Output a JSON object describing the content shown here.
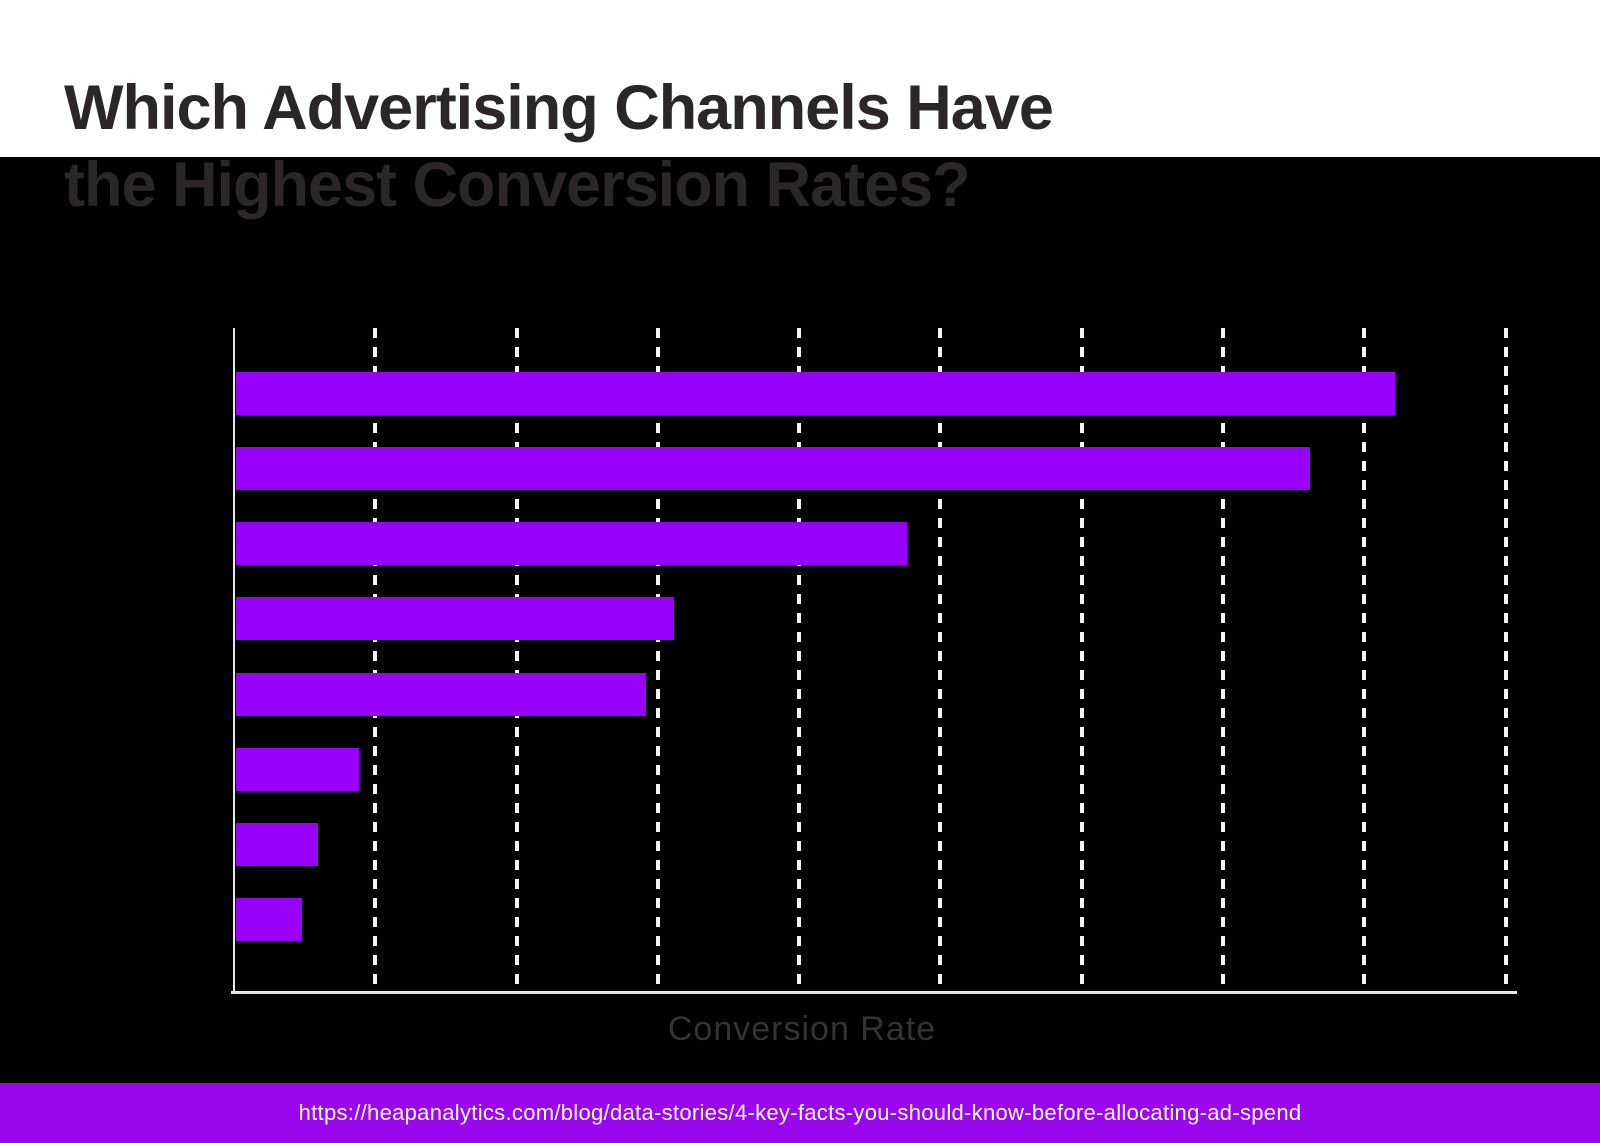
{
  "header": {
    "title_line1": "Which Advertising Channels Have",
    "title_line2": "the Highest Conversion Rates?"
  },
  "footer": {
    "url": "https://heapanalytics.com/blog/data-stories/4-key-facts-you-should-know-before-allocating-ad-spend"
  },
  "colors": {
    "page_bg": "#000000",
    "header_bg": "#ffffff",
    "title_text": "#2b2728",
    "bar": "#9900fb",
    "axis": "#e8e8e8",
    "gridline": "#f4f4f4",
    "xlabel_text": "#363233",
    "footer_bg": "#9a07ef",
    "footer_text": "#ffffff"
  },
  "chart_data": {
    "type": "bar",
    "orientation": "horizontal",
    "title": "Which Advertising Channels Have the Highest Conversion Rates?",
    "xlabel": "Conversion Rate",
    "categories": [
      "",
      "",
      "",
      "",
      "",
      "",
      "",
      ""
    ],
    "values": [
      8.2,
      7.6,
      4.75,
      3.1,
      2.9,
      0.87,
      0.58,
      0.47
    ],
    "value_units": "x-axis gridline intervals; axis tick labels and category labels are not visible (rendered black on black)",
    "xlim": [
      0,
      9.08
    ],
    "gridlines": {
      "count": 9,
      "style": "dashed",
      "orientation": "vertical"
    },
    "legend": false,
    "bar_color": "#9900fb",
    "background": "#000000"
  }
}
